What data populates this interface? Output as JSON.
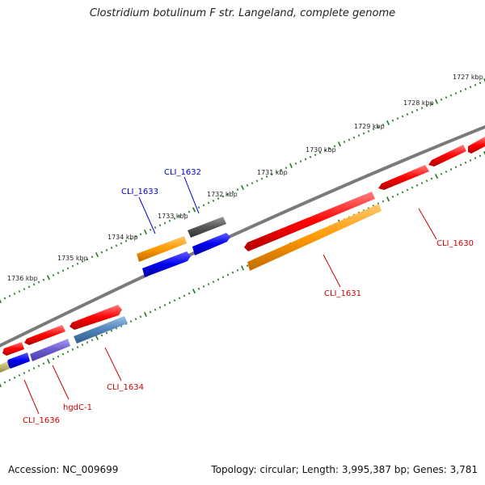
{
  "title": "Clostridium botulinum F str. Langeland, complete genome",
  "footer": {
    "accession": "Accession: NC_009699",
    "topology": "Topology: circular; Length: 3,995,387 bp; Genes: 3,781"
  },
  "scale_labels": [
    "1727 kbp",
    "1728 kbp",
    "1729 kbp",
    "1730 kbp",
    "1731 kbp",
    "1732 kbp",
    "1733 kbp",
    "1734 kbp",
    "1735 kbp",
    "1736 kbp"
  ],
  "gene_labels": [
    {
      "name": "CLI_1632",
      "color": "#0000cc"
    },
    {
      "name": "CLI_1633",
      "color": "#0000cc"
    },
    {
      "name": "CLI_1630",
      "color": "#cc0000"
    },
    {
      "name": "CLI_1631",
      "color": "#cc0000"
    },
    {
      "name": "CLI_1634",
      "color": "#cc0000"
    },
    {
      "name": "hgdC-1",
      "color": "#cc0000"
    },
    {
      "name": "CLI_1636",
      "color": "#cc0000"
    }
  ],
  "colors": {
    "backbone": "#7a7a7a",
    "tick": "#1e7a1e",
    "red": "#ff0000",
    "orange": "#ff9900",
    "blue": "#0000ee",
    "gray": "#555555",
    "steelblue": "#4f82b8",
    "purple": "#6a5acd",
    "khaki": "#bdb76b"
  }
}
